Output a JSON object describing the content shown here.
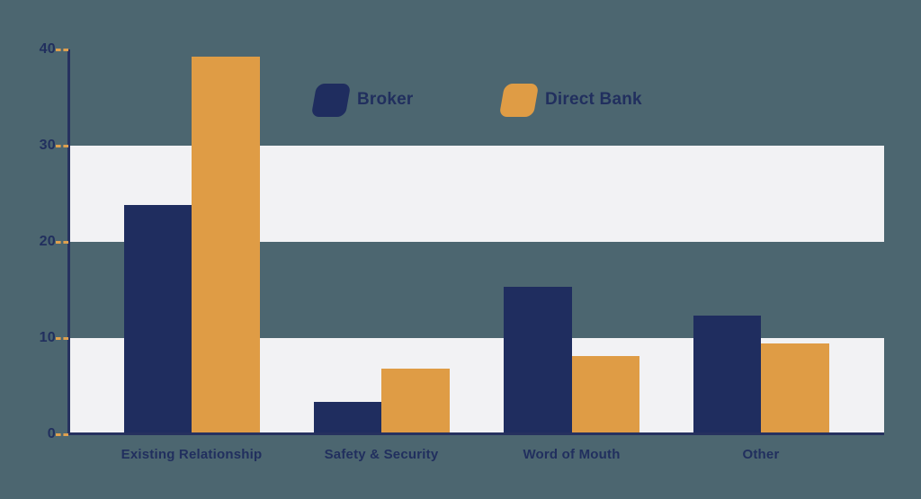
{
  "colors": {
    "background": "#4c6670",
    "band": "#f2f2f4",
    "navy": "#1f2d5f",
    "orange": "#df9c45",
    "axis": "#26315f",
    "tick": "#dfa04f",
    "text": "#212f5e"
  },
  "chart_data": {
    "type": "bar",
    "title": "",
    "xlabel": "",
    "ylabel": "",
    "categories": [
      "Existing Relationship",
      "Safety & Security",
      "Word of Mouth",
      "Other"
    ],
    "series": [
      {
        "name": "Broker",
        "color": "#1f2d5f",
        "values": [
          23.8,
          3.4,
          15.3,
          12.3
        ]
      },
      {
        "name": "Direct Bank",
        "color": "#df9c45",
        "values": [
          39.3,
          6.8,
          8.1,
          9.4
        ]
      }
    ],
    "ylim": [
      0,
      40
    ],
    "yticks": [
      0,
      10,
      20,
      30,
      40
    ],
    "grid": "alternating-bands",
    "band_ranges": [
      [
        0,
        10
      ],
      [
        20,
        30
      ]
    ],
    "legend_position": "top-center"
  }
}
